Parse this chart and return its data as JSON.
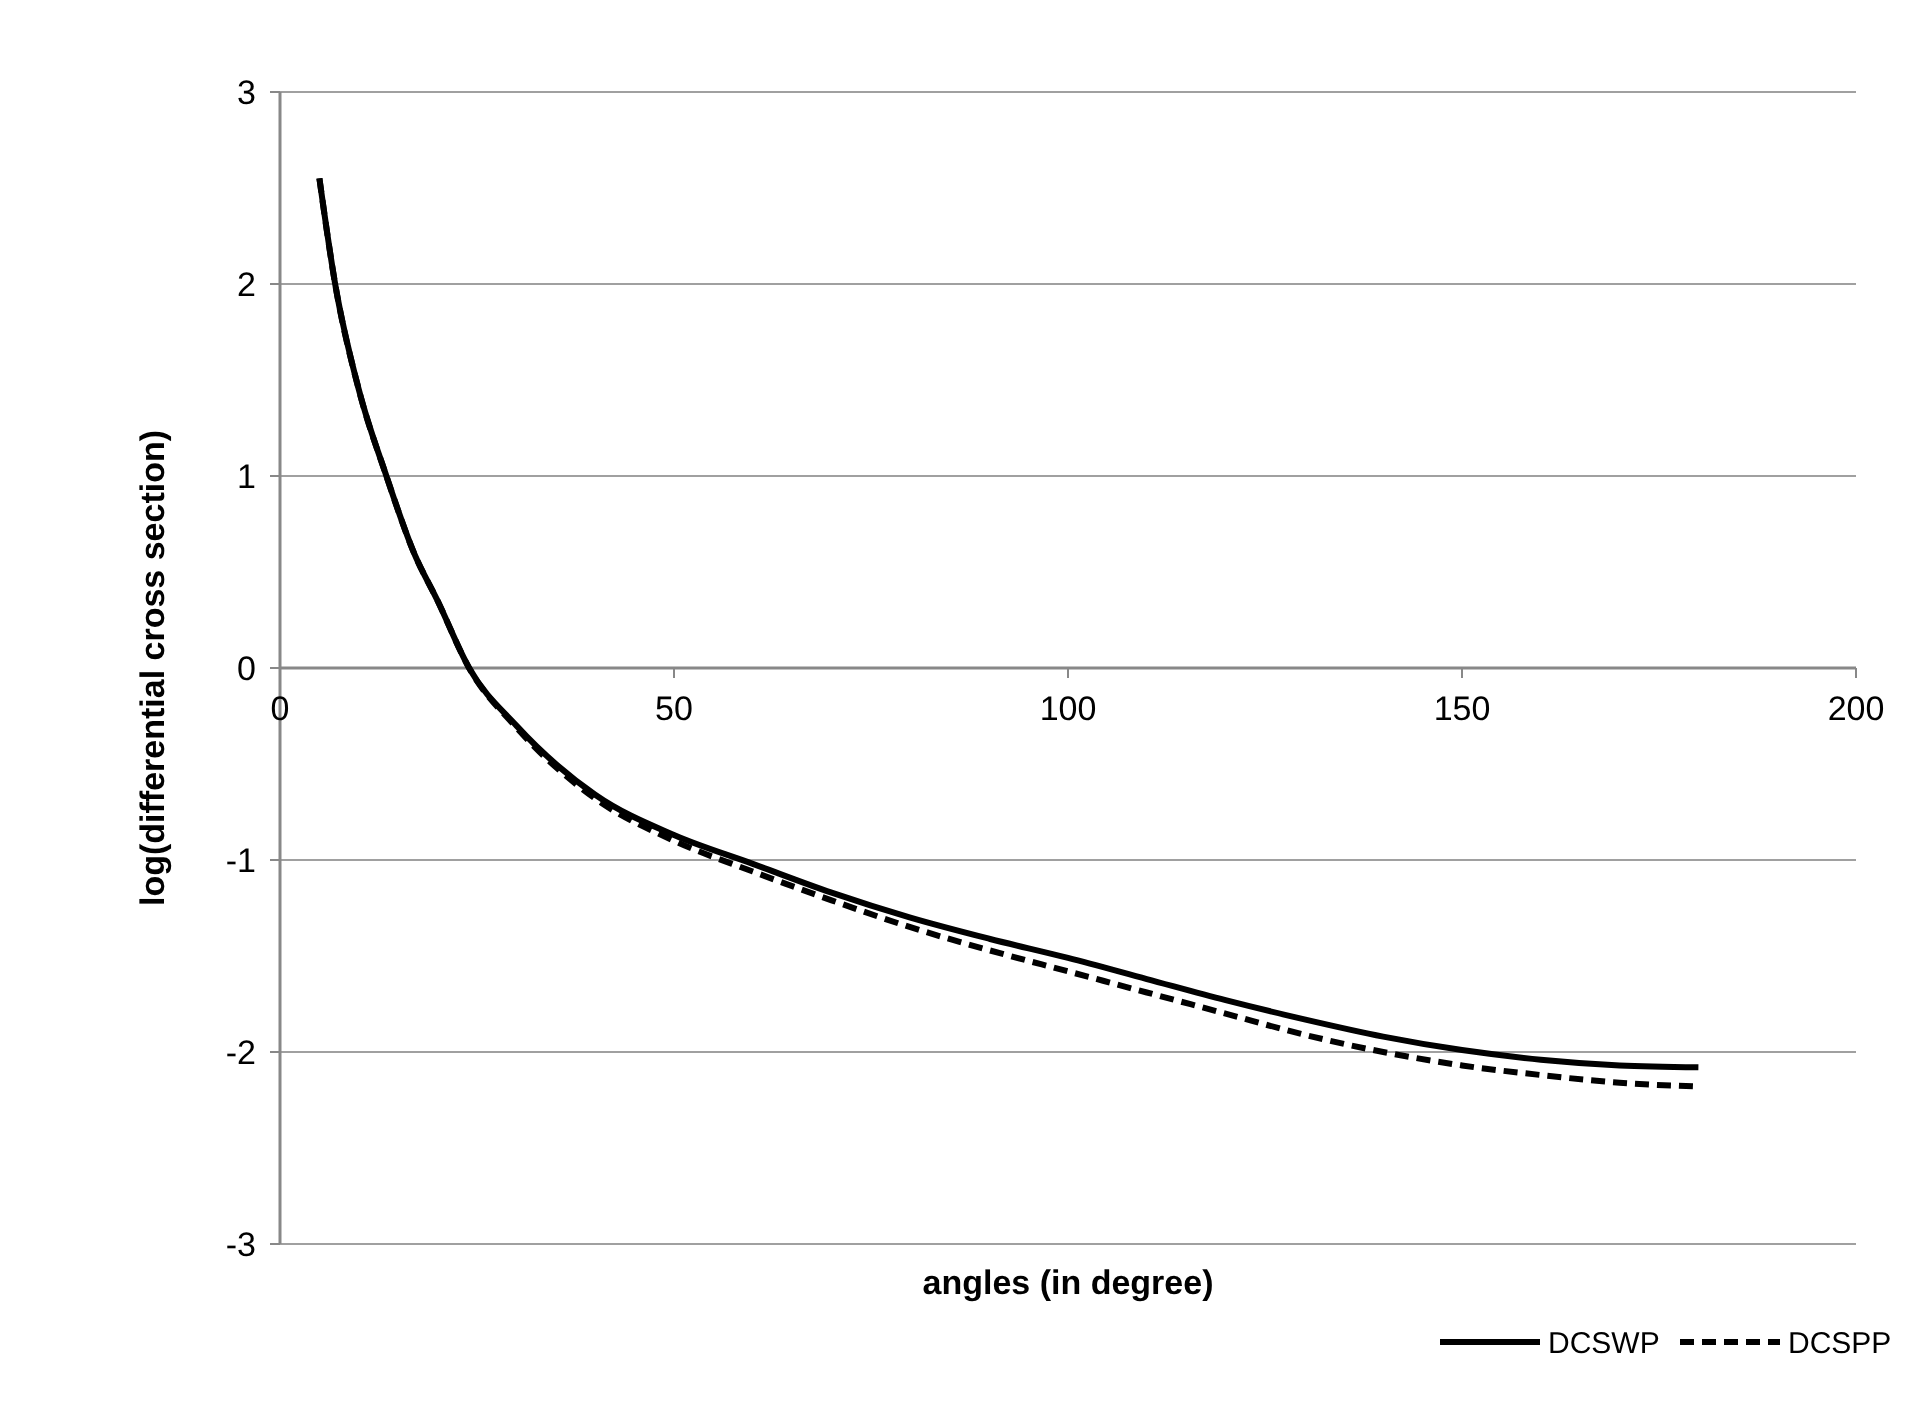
{
  "chart_data": {
    "type": "line",
    "xlabel": "angles (in degree)",
    "ylabel": "log(differential cross section)",
    "xlim": [
      0,
      200
    ],
    "xticks": [
      0,
      50,
      100,
      150,
      200
    ],
    "ylim": [
      -3,
      3
    ],
    "yticks": [
      -3,
      -2,
      -1,
      0,
      1,
      2,
      3
    ],
    "grid": "y",
    "legend": "bottom right",
    "series": [
      {
        "name": "DCSWP",
        "color": "#000000",
        "line_style": "solid",
        "x": [
          5,
          7,
          10,
          13.5,
          17,
          20,
          24,
          30,
          40,
          50,
          60,
          70,
          80,
          90,
          100,
          110,
          120,
          130,
          140,
          150,
          160,
          170,
          180
        ],
        "values": [
          2.55,
          2.0,
          1.45,
          1.0,
          0.6,
          0.35,
          0,
          -0.3,
          -0.66,
          -0.87,
          -1.02,
          -1.17,
          -1.3,
          -1.41,
          -1.51,
          -1.62,
          -1.73,
          -1.83,
          -1.92,
          -1.99,
          -2.04,
          -2.07,
          -2.08
        ]
      },
      {
        "name": "DCSPP",
        "color": "#000000",
        "line_style": "dashed",
        "x": [
          5,
          7,
          10,
          13.5,
          17,
          20,
          24,
          30,
          40,
          50,
          60,
          70,
          80,
          90,
          100,
          110,
          120,
          130,
          140,
          150,
          160,
          170,
          180
        ],
        "values": [
          2.55,
          2.0,
          1.45,
          1.0,
          0.6,
          0.35,
          0,
          -0.31,
          -0.68,
          -0.9,
          -1.06,
          -1.21,
          -1.35,
          -1.47,
          -1.58,
          -1.69,
          -1.8,
          -1.91,
          -2.0,
          -2.07,
          -2.12,
          -2.16,
          -2.18
        ]
      }
    ]
  }
}
